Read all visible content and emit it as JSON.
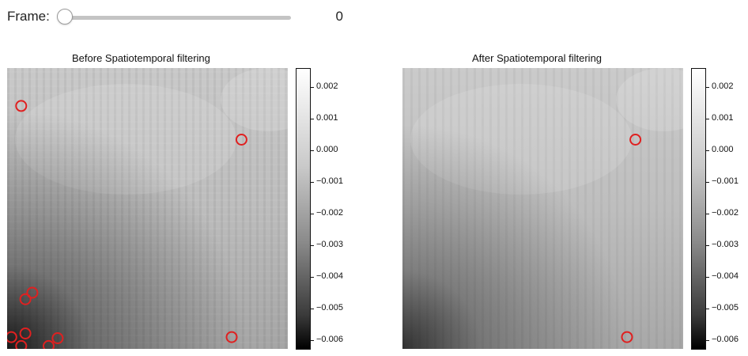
{
  "controls": {
    "frame_label": "Frame:",
    "frame_value": "0",
    "frame_fraction": 0
  },
  "panels": [
    {
      "title": "Before Spatiotemporal filtering",
      "markers": [
        {
          "x": 0.05,
          "y": 0.135
        },
        {
          "x": 0.835,
          "y": 0.255
        },
        {
          "x": 0.09,
          "y": 0.8
        },
        {
          "x": 0.065,
          "y": 0.823
        },
        {
          "x": 0.065,
          "y": 0.945
        },
        {
          "x": 0.015,
          "y": 0.958
        },
        {
          "x": 0.18,
          "y": 0.962
        },
        {
          "x": 0.05,
          "y": 0.99
        },
        {
          "x": 0.148,
          "y": 0.99
        },
        {
          "x": 0.8,
          "y": 0.958
        }
      ]
    },
    {
      "title": "After Spatiotemporal filtering",
      "markers": [
        {
          "x": 0.83,
          "y": 0.255
        },
        {
          "x": 0.8,
          "y": 0.958
        }
      ]
    }
  ],
  "colorbar": {
    "ticks": [
      "0.002",
      "0.001",
      "0.000",
      "−0.001",
      "−0.002",
      "−0.003",
      "−0.004",
      "−0.005",
      "−0.006"
    ],
    "tick_values": [
      0.002,
      0.001,
      0.0,
      -0.001,
      -0.002,
      -0.003,
      -0.004,
      -0.005,
      -0.006
    ],
    "vmax": 0.0026,
    "vmin": -0.0063
  },
  "colors": {
    "marker": "#e02020",
    "slider_track": "#c4c4c4"
  }
}
